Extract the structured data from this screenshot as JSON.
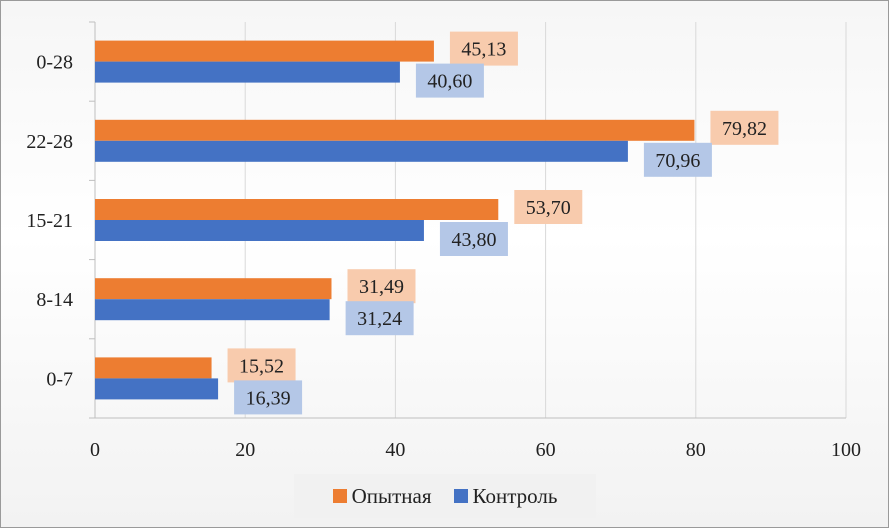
{
  "chart_data": {
    "type": "bar",
    "orientation": "horizontal",
    "categories": [
      "0-28",
      "22-28",
      "15-21",
      "8-14",
      "0-7"
    ],
    "series": [
      {
        "name": "Опытная",
        "color": "#ed7d31",
        "label_bg": "#f8cbad",
        "values": [
          45.13,
          79.82,
          53.7,
          31.49,
          15.52
        ],
        "labels": [
          "45,13",
          "79,82",
          "53,70",
          "31,49",
          "15,52"
        ]
      },
      {
        "name": "Контроль",
        "color": "#4472c4",
        "label_bg": "#b4c7e7",
        "values": [
          40.6,
          70.96,
          43.8,
          31.24,
          16.39
        ],
        "labels": [
          "40,60",
          "70,96",
          "43,80",
          "31,24",
          "16,39"
        ]
      }
    ],
    "xlim": [
      0,
      100
    ],
    "x_ticks": [
      0,
      20,
      40,
      60,
      80,
      100
    ],
    "grid": true,
    "legend_position": "bottom",
    "title": "",
    "xlabel": "",
    "ylabel": ""
  }
}
